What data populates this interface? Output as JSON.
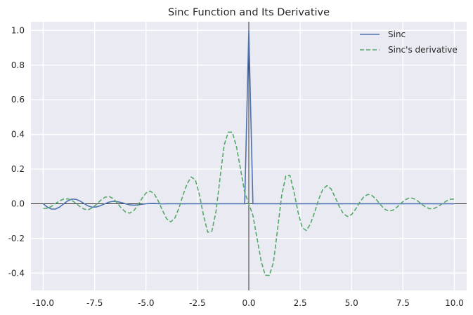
{
  "chart_data": {
    "type": "line",
    "title": "Sinc Function and Its Derivative",
    "xlabel": "",
    "ylabel": "",
    "xlim": [
      -10.6,
      10.6
    ],
    "ylim": [
      -0.5,
      1.05
    ],
    "xticks": [
      -10.0,
      -7.5,
      -5.0,
      -2.5,
      0.0,
      2.5,
      5.0,
      7.5,
      10.0
    ],
    "xtick_labels": [
      "-10.0",
      "-7.5",
      "-5.0",
      "-2.5",
      "0.0",
      "2.5",
      "5.0",
      "7.5",
      "10.0"
    ],
    "yticks": [
      -0.4,
      -0.2,
      0.0,
      0.2,
      0.4,
      0.6,
      0.8,
      1.0
    ],
    "ytick_labels": [
      "-0.4",
      "-0.2",
      "0.0",
      "0.2",
      "0.4",
      "0.6",
      "0.8",
      "1.0"
    ],
    "grid": true,
    "legend_position": "top-right",
    "reference_lines": {
      "x": 0,
      "y": 0
    },
    "x": [
      -10.0,
      -9.8,
      -9.6,
      -9.4,
      -9.2,
      -9.0,
      -8.8,
      -8.6,
      -8.4,
      -8.2,
      -8.0,
      -7.8,
      -7.6,
      -7.4,
      -7.2,
      -7.0,
      -6.8,
      -6.6,
      -6.4,
      -6.2,
      -6.0,
      -5.8,
      -5.6,
      -5.4,
      -5.2,
      -5.0,
      -4.8,
      -4.6,
      -4.4,
      -4.2,
      -4.0,
      -3.8,
      -3.6,
      -3.4,
      -3.2,
      -3.0,
      -2.8,
      -2.6,
      -2.4,
      -2.2,
      -2.0,
      -1.8,
      -1.6,
      -1.4,
      -1.2,
      -1.0,
      -0.8,
      -0.6,
      -0.4,
      -0.2,
      0.0,
      0.2,
      0.4,
      0.6,
      0.8,
      1.0,
      1.2,
      1.4,
      1.6,
      1.8,
      2.0,
      2.2,
      2.4,
      2.6,
      2.8,
      3.0,
      3.2,
      3.4,
      3.6,
      3.8,
      4.0,
      4.2,
      4.4,
      4.6,
      4.8,
      5.0,
      5.2,
      5.4,
      5.6,
      5.8,
      6.0,
      6.2,
      6.4,
      6.6,
      6.8,
      7.0,
      7.2,
      7.4,
      7.6,
      7.8,
      8.0,
      8.2,
      8.4,
      8.6,
      8.8,
      9.0,
      9.2,
      9.4,
      9.6,
      9.8,
      10.0
    ],
    "series": [
      {
        "name": "Sinc",
        "color": "#4c72b0",
        "style": "solid",
        "values": [
          0.0,
          -0.0192,
          -0.0306,
          -0.0301,
          -0.0184,
          0.0,
          0.0175,
          0.0269,
          0.0255,
          0.0152,
          0.0,
          -0.0134,
          -0.0199,
          -0.018,
          -0.0101,
          0.0,
          0.0095,
          0.0139,
          0.0122,
          0.0069,
          0.0,
          -0.0061,
          -0.0081,
          -0.0067,
          -0.0031,
          0.0,
          0.0015,
          0.0022,
          0.0004,
          -0.0007,
          0.0,
          0.0,
          0.0,
          0.0,
          0.0,
          0.0,
          0.0,
          0.0,
          0.0,
          0.0,
          0.0,
          0.0,
          0.0,
          0.0,
          0.0,
          0.0,
          0.0,
          0.0,
          0.0,
          0.0,
          1.0,
          0.0,
          0.0,
          0.0,
          0.0,
          0.0,
          0.0,
          0.0,
          0.0,
          0.0,
          0.0,
          0.0,
          0.0,
          0.0,
          0.0,
          0.0,
          0.0,
          0.0,
          0.0,
          0.0,
          0.0,
          0.0,
          0.0,
          0.0,
          0.0,
          0.0,
          0.0,
          0.0,
          0.0,
          0.0,
          0.0,
          0.0,
          0.0,
          0.0,
          0.0,
          0.0,
          0.0,
          0.0,
          0.0,
          0.0,
          0.0,
          0.0,
          0.0,
          0.0,
          0.0,
          0.0,
          0.0,
          0.0,
          0.0,
          0.0,
          0.0
        ]
      },
      {
        "name": "Sinc's derivative",
        "color": "#55a868",
        "style": "dashed",
        "values": [
          -0.0275,
          -0.0257,
          -0.0149,
          0.0012,
          0.017,
          0.0275,
          0.0285,
          0.0189,
          0.0015,
          -0.0179,
          -0.0315,
          -0.0337,
          -0.0226,
          -0.0021,
          0.0206,
          0.0378,
          0.0421,
          0.0302,
          0.0044,
          -0.0249,
          -0.0473,
          -0.0541,
          -0.041,
          -0.0088,
          0.0302,
          0.0623,
          0.0735,
          0.0571,
          0.0148,
          -0.0378,
          -0.0863,
          -0.1046,
          -0.0833,
          -0.0252,
          0.0502,
          0.1156,
          0.1545,
          0.1379,
          0.0506,
          -0.0681,
          -0.1637,
          -0.1601,
          -0.0476,
          0.1471,
          0.3376,
          0.4134,
          0.4122,
          0.3296,
          0.1986,
          0.0668,
          0.0,
          -0.0668,
          -0.1986,
          -0.3296,
          -0.4122,
          -0.4134,
          -0.3376,
          -0.1471,
          0.0476,
          0.1601,
          0.1637,
          0.0681,
          -0.0506,
          -0.1379,
          -0.1545,
          -0.1156,
          -0.0502,
          0.0252,
          0.0833,
          0.1046,
          0.0863,
          0.0378,
          -0.0148,
          -0.0571,
          -0.0735,
          -0.0623,
          -0.0302,
          0.0088,
          0.041,
          0.0541,
          0.0473,
          0.0249,
          -0.0044,
          -0.0302,
          -0.0421,
          -0.0378,
          -0.0206,
          0.0021,
          0.0226,
          0.0337,
          0.0315,
          0.0179,
          -0.0015,
          -0.0189,
          -0.0285,
          -0.0275,
          -0.017,
          -0.0012,
          0.0149,
          0.0257,
          0.0275
        ]
      }
    ]
  }
}
